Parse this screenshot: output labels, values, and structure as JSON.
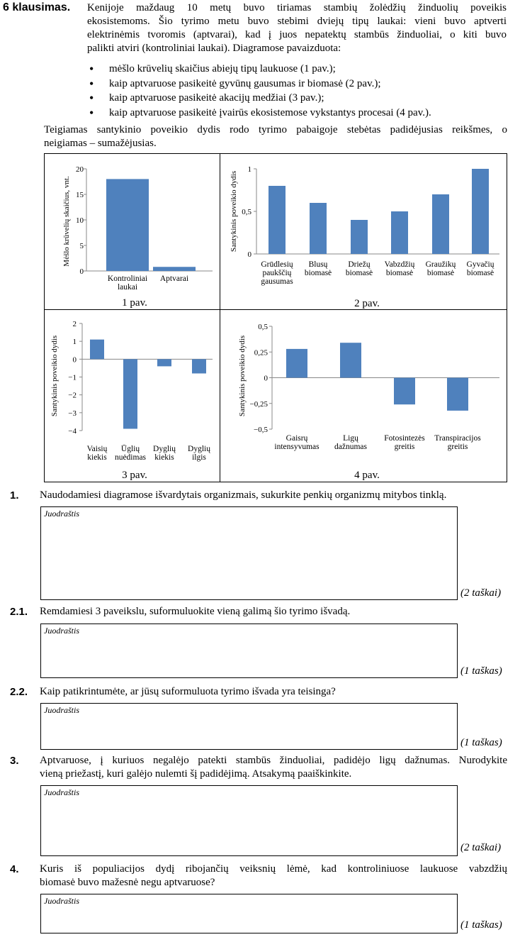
{
  "header": {
    "label": "6 klausimas.",
    "intro_lines": [
      "Kenijoje maždaug 10 metų buvo tiriamas stambių žolėdžių žinduolių poveikis",
      "ekosistemoms. Šio tyrimo metu buvo stebimi dviejų tipų laukai: vieni buvo aptverti",
      "elektrinėmis tvoromis (aptvarai), kad į juos nepatektų stambūs žinduoliai, o kiti buvo",
      "palikti atviri (kontroliniai laukai). Diagramose pavaizduota:"
    ],
    "bullets": [
      "mėšlo krūvelių skaičius abiejų tipų laukuose (1 pav.);",
      "kaip aptvaruose pasikeitė gyvūnų gausumas ir biomasė (2 pav.);",
      "kaip aptvaruose pasikeitė akacijų medžiai (3 pav.);",
      "kaip aptvaruose pasikeitė įvairūs ekosistemose vykstantys procesai (4 pav.)."
    ],
    "note_lines": [
      "Teigiamas santykinio poveikio dydis rodo tyrimo pabaigoje stebėtas padidėjusias reikšmes, o",
      "neigiamas – sumažėjusias."
    ]
  },
  "chart_data": [
    {
      "type": "bar",
      "caption": "1 pav.",
      "ylabel": "Mėšlo krūvelių skaičius, vnt.",
      "yticks": [
        "0",
        "5",
        "10",
        "15",
        "20"
      ],
      "ylim": [
        0,
        20
      ],
      "categories": [
        "Kontroliniai laukai",
        "Aptvarai"
      ],
      "category_lines": [
        [
          "Kontroliniai",
          "laukai"
        ],
        [
          "Aptvarai"
        ]
      ],
      "values": [
        18,
        0.8
      ],
      "color": "#4f81bd"
    },
    {
      "type": "bar",
      "caption": "2 pav.",
      "ylabel": "Santykinis poveikio dydis",
      "yticks": [
        "0",
        "0,5",
        "1"
      ],
      "ylim": [
        0,
        1
      ],
      "categories": [
        "Grūdlesių paukščių gausumas",
        "Blusų biomasė",
        "Driežų biomasė",
        "Vabzdžių biomasė",
        "Graužikų biomasė",
        "Gyvačių biomasė"
      ],
      "category_lines": [
        [
          "Grūdlesių",
          "paukščių",
          "gausumas"
        ],
        [
          "Blusų",
          "biomasė"
        ],
        [
          "Driežų",
          "biomasė"
        ],
        [
          "Vabzdžių",
          "biomasė"
        ],
        [
          "Graužikų",
          "biomasė"
        ],
        [
          "Gyvačių",
          "biomasė"
        ]
      ],
      "values": [
        0.8,
        0.6,
        0.4,
        0.5,
        0.7,
        1.0
      ],
      "color": "#4f81bd"
    },
    {
      "type": "bar",
      "caption": "3 pav.",
      "ylabel": "Santykinis poveikio dydis",
      "yticks": [
        "−4",
        "−3",
        "−2",
        "−1",
        "0",
        "1",
        "2"
      ],
      "ylim": [
        -4,
        2
      ],
      "categories": [
        "Vaisių kiekis",
        "Ūglių nuėdimas",
        "Dyglių kiekis",
        "Dyglių ilgis"
      ],
      "category_lines": [
        [
          "Vaisių",
          "kiekis"
        ],
        [
          "Ūglių",
          "nuėdimas"
        ],
        [
          "Dyglių",
          "kiekis"
        ],
        [
          "Dyglių",
          "ilgis"
        ]
      ],
      "values": [
        1.1,
        -3.9,
        -0.4,
        -0.8
      ],
      "color": "#4f81bd"
    },
    {
      "type": "bar",
      "caption": "4 pav.",
      "ylabel": "Santykinis poveikio dydis",
      "yticks": [
        "−0,5",
        "−0,25",
        "0",
        "0,25",
        "0,5"
      ],
      "ylim": [
        -0.5,
        0.5
      ],
      "categories": [
        "Gaisrų intensyvumas",
        "Ligų dažnumas",
        "Fotosintezės greitis",
        "Transpiracijos greitis"
      ],
      "category_lines": [
        [
          "Gaisrų",
          "intensyvumas"
        ],
        [
          "Ligų",
          "dažnumas"
        ],
        [
          "Fotosintezės",
          "greitis"
        ],
        [
          "Transpiracijos",
          "greitis"
        ]
      ],
      "values": [
        0.28,
        0.34,
        -0.26,
        -0.32
      ],
      "color": "#4f81bd"
    }
  ],
  "questions": [
    {
      "num": "1.",
      "lines": [
        "Naudodamiesi diagramose išvardytais organizmais, sukurkite penkių organizmų mitybos tinklą."
      ],
      "draft": "Juodraštis",
      "points": "(2 taškai)"
    },
    {
      "num": "2.1.",
      "lines": [
        "Remdamiesi 3 paveikslu, suformuluokite vieną galimą šio tyrimo išvadą."
      ],
      "draft": "Juodraštis",
      "points": "(1 taškas)"
    },
    {
      "num": "2.2.",
      "lines": [
        "Kaip patikrintumėte, ar jūsų suformuluota tyrimo išvada yra teisinga?"
      ],
      "draft": "Juodraštis",
      "points": "(1 taškas)"
    },
    {
      "num": "3.",
      "lines": [
        "Aptvaruose, į kuriuos negalėjo patekti stambūs žinduoliai, padidėjo ligų dažnumas. Nurodykite",
        "vieną priežastį, kuri galėjo nulemti šį padidėjimą. Atsakymą paaiškinkite."
      ],
      "draft": "Juodraštis",
      "points": "(2 taškai)"
    },
    {
      "num": "4.",
      "lines": [
        "Kuris iš populiacijos dydį ribojančių veiksnių lėmė, kad kontroliniuose laukuose vabzdžių",
        "biomasė buvo mažesnė negu aptvaruose?"
      ],
      "draft": "Juodraštis",
      "points": "(1 taškas)"
    }
  ]
}
